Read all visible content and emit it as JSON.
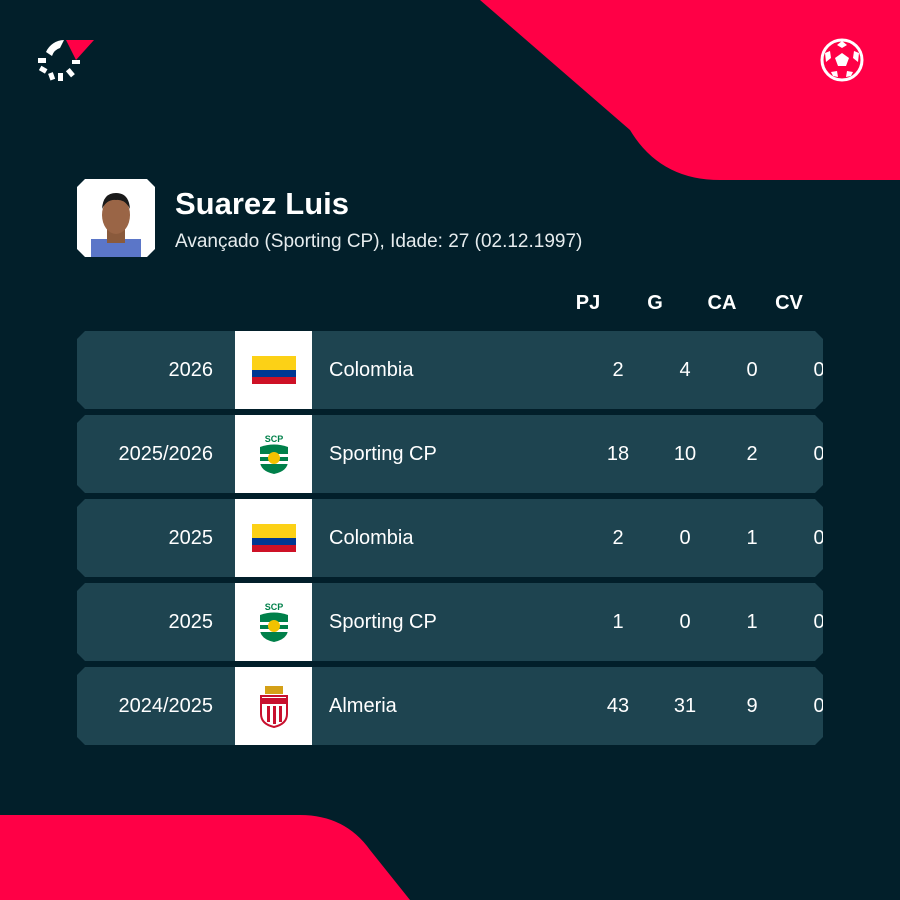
{
  "colors": {
    "background": "#021f2a",
    "accent": "#ff0046",
    "row": "#1e4450"
  },
  "player": {
    "name": "Suarez Luis",
    "details": "Avançado (Sporting CP), Idade: 27 (02.12.1997)"
  },
  "columns": [
    "PJ",
    "G",
    "CA",
    "CV"
  ],
  "rows": [
    {
      "season": "2026",
      "team": "Colombia",
      "crest": "colombia-flag",
      "pj": "2",
      "g": "4",
      "ca": "0",
      "cv": "0"
    },
    {
      "season": "2025/2026",
      "team": "Sporting CP",
      "crest": "sporting-cp-crest",
      "pj": "18",
      "g": "10",
      "ca": "2",
      "cv": "0"
    },
    {
      "season": "2025",
      "team": "Colombia",
      "crest": "colombia-flag",
      "pj": "2",
      "g": "0",
      "ca": "1",
      "cv": "0"
    },
    {
      "season": "2025",
      "team": "Sporting CP",
      "crest": "sporting-cp-crest",
      "pj": "1",
      "g": "0",
      "ca": "1",
      "cv": "0"
    },
    {
      "season": "2024/2025",
      "team": "Almeria",
      "crest": "almeria-crest",
      "pj": "43",
      "g": "31",
      "ca": "9",
      "cv": "0"
    }
  ]
}
